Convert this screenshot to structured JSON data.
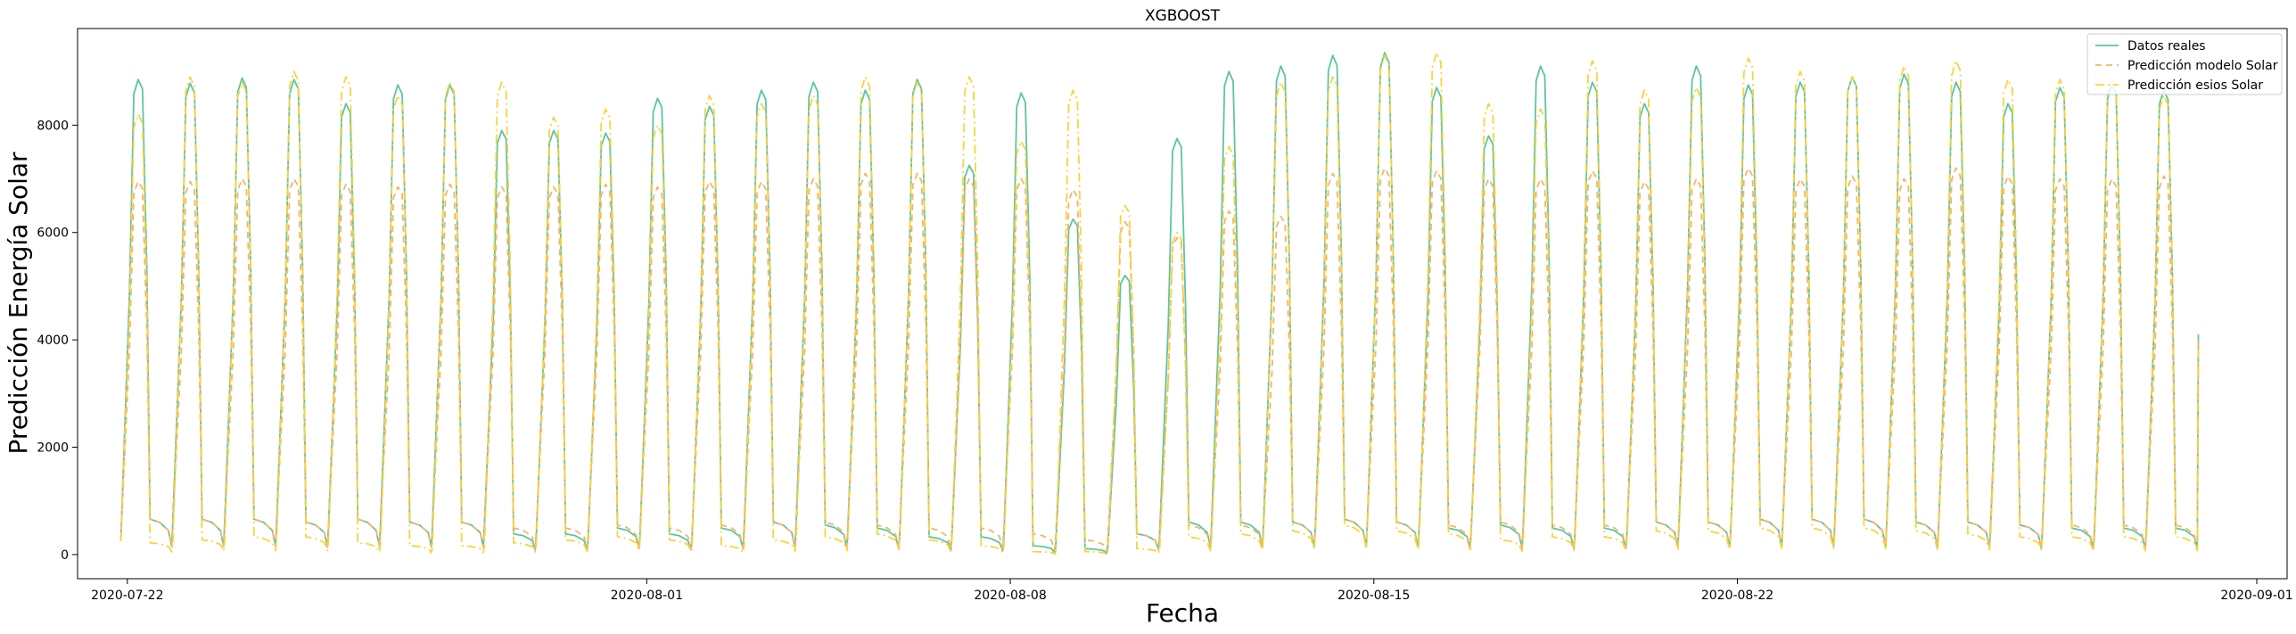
{
  "chart_data": {
    "type": "line",
    "title": "XGBOOST",
    "xlabel": "Fecha",
    "ylabel": "Predicción Energía Solar",
    "x_ticks": [
      "2020-07-22",
      "2020-08-01",
      "2020-08-08",
      "2020-08-15",
      "2020-08-22",
      "2020-09-01"
    ],
    "y_ticks": [
      0,
      2000,
      4000,
      6000,
      8000
    ],
    "xlim": [
      "2020-07-21T01:00",
      "2020-09-01T14:00"
    ],
    "ylim": [
      -450,
      9800
    ],
    "grid": false,
    "legend_position": "top-right",
    "days": [
      "2020-07-22",
      "2020-07-23",
      "2020-07-24",
      "2020-07-25",
      "2020-07-26",
      "2020-07-27",
      "2020-07-28",
      "2020-07-29",
      "2020-07-30",
      "2020-07-31",
      "2020-08-01",
      "2020-08-02",
      "2020-08-03",
      "2020-08-04",
      "2020-08-05",
      "2020-08-06",
      "2020-08-07",
      "2020-08-08",
      "2020-08-09",
      "2020-08-10",
      "2020-08-11",
      "2020-08-12",
      "2020-08-13",
      "2020-08-14",
      "2020-08-15",
      "2020-08-16",
      "2020-08-17",
      "2020-08-18",
      "2020-08-19",
      "2020-08-20",
      "2020-08-21",
      "2020-08-22",
      "2020-08-23",
      "2020-08-24",
      "2020-08-25",
      "2020-08-26",
      "2020-08-27",
      "2020-08-28",
      "2020-08-29",
      "2020-08-30"
    ],
    "series": [
      {
        "name": "Datos reales",
        "color": "#5ec4a2",
        "dash": "",
        "daily_peak": [
          8850,
          8780,
          8880,
          8850,
          8400,
          8750,
          8750,
          7900,
          7900,
          7850,
          8500,
          8350,
          8650,
          8800,
          8650,
          8850,
          7250,
          8600,
          6250,
          5200,
          7750,
          9000,
          9100,
          9300,
          9350,
          8700,
          7800,
          9100,
          8800,
          8400,
          9100,
          8750,
          8800,
          8900,
          8950,
          8800,
          8400,
          8700,
          8750,
          8650
        ],
        "daily_min": [
          650,
          600,
          600,
          600,
          550,
          600,
          550,
          550,
          350,
          350,
          450,
          350,
          450,
          550,
          500,
          450,
          300,
          300,
          150,
          100,
          350,
          550,
          550,
          550,
          600,
          550,
          450,
          500,
          450,
          450,
          550,
          550,
          600,
          600,
          600,
          550,
          550,
          500,
          450,
          450
        ]
      },
      {
        "name": "Predicción modelo Solar",
        "color": "#f6b36a",
        "dash": "7,5",
        "daily_peak": [
          6950,
          6950,
          7000,
          7000,
          6900,
          6850,
          6900,
          6850,
          6850,
          6900,
          6850,
          6950,
          6950,
          7000,
          7100,
          7100,
          7000,
          7000,
          6800,
          6200,
          5900,
          6400,
          6300,
          7100,
          7200,
          7150,
          7000,
          7000,
          7150,
          6950,
          7000,
          7200,
          7000,
          7050,
          7000,
          7200,
          7050,
          7000,
          7000,
          7050
        ],
        "daily_min": [
          650,
          600,
          600,
          600,
          550,
          600,
          550,
          550,
          450,
          450,
          500,
          450,
          500,
          550,
          550,
          500,
          450,
          450,
          350,
          250,
          350,
          500,
          500,
          550,
          600,
          550,
          500,
          550,
          500,
          500,
          550,
          550,
          600,
          600,
          600,
          550,
          550,
          500,
          500,
          500
        ]
      },
      {
        "name": "Predicción esios Solar",
        "color": "#f9d33b",
        "dash": "10,4,2,4",
        "daily_peak": [
          8200,
          8900,
          8800,
          9000,
          8900,
          8550,
          8800,
          8800,
          8150,
          8300,
          8000,
          8550,
          8400,
          8550,
          8900,
          8800,
          8900,
          7700,
          8650,
          6500,
          6000,
          7600,
          8800,
          8900,
          9300,
          9350,
          8400,
          8300,
          9200,
          8650,
          8700,
          9250,
          9000,
          8900,
          9100,
          9200,
          8850,
          8850,
          8850,
          8550
        ],
        "daily_min": [
          100,
          200,
          250,
          300,
          300,
          200,
          150,
          150,
          200,
          250,
          300,
          250,
          150,
          250,
          300,
          350,
          250,
          150,
          50,
          50,
          100,
          300,
          350,
          400,
          500,
          400,
          350,
          250,
          300,
          300,
          400,
          400,
          450,
          450,
          450,
          400,
          350,
          300,
          300,
          300
        ]
      }
    ]
  }
}
